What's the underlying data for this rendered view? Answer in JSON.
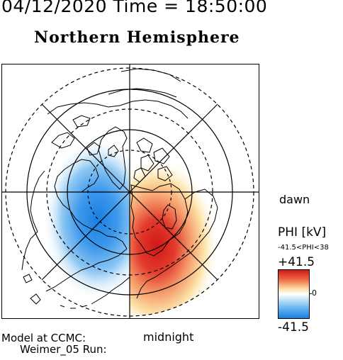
{
  "header": {
    "datetime": "04/12/2020 Time = 18:50:00",
    "hemisphere": "Northern Hemisphere"
  },
  "labels": {
    "dawn": "dawn",
    "midnight": "midnight",
    "model_line1": "Model at CCMC:",
    "model_line2": "Weimer_05 Run:"
  },
  "colorbar": {
    "title": "PHI [kV]",
    "range_text": "-41.5<PHI<38",
    "max_label": "+41.5",
    "zero_label": "0",
    "min_label": "-41.5",
    "colors": {
      "positive": "#d01818",
      "zero": "#ffffff",
      "negative": "#1a7fe0"
    }
  },
  "map": {
    "projection": "polar",
    "pole": "north",
    "latitude_circles_solid": 2,
    "latitude_circles_dashed": 3,
    "meridian_lines": 8,
    "potential_cells": [
      {
        "polarity": "negative",
        "side": "dusk"
      },
      {
        "polarity": "positive",
        "side": "dawn"
      }
    ]
  }
}
